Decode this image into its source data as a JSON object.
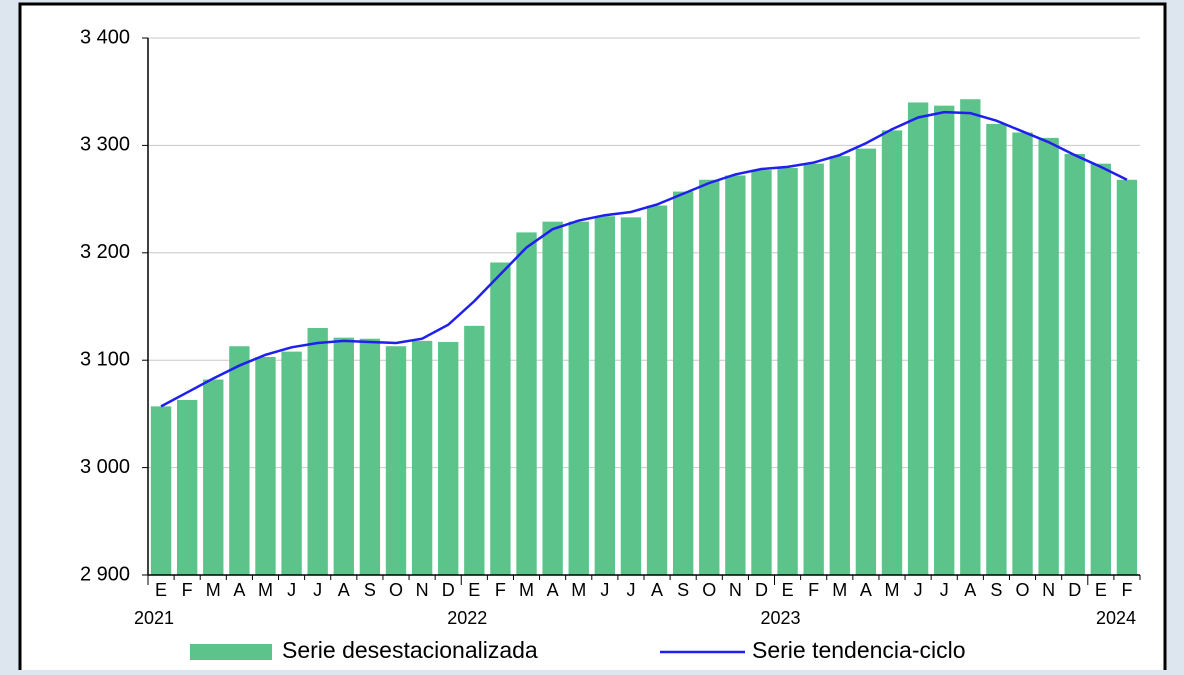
{
  "chart_data": {
    "type": "bar_line",
    "categories": [
      "E",
      "F",
      "M",
      "A",
      "M",
      "J",
      "J",
      "A",
      "S",
      "O",
      "N",
      "D",
      "E",
      "F",
      "M",
      "A",
      "M",
      "J",
      "J",
      "A",
      "S",
      "O",
      "N",
      "D",
      "E",
      "F",
      "M",
      "A",
      "M",
      "J",
      "J",
      "A",
      "S",
      "O",
      "N",
      "D",
      "E",
      "F"
    ],
    "years": [
      "2021",
      "2022",
      "2023",
      "2024"
    ],
    "series": [
      {
        "name": "Serie desestacionalizada",
        "color": "#5cc48a",
        "kind": "bar",
        "values": [
          3057,
          3063,
          3082,
          3113,
          3103,
          3108,
          3130,
          3121,
          3120,
          3113,
          3118,
          3117,
          3132,
          3191,
          3219,
          3229,
          3229,
          3234,
          3233,
          3244,
          3257,
          3268,
          3272,
          3277,
          3279,
          3283,
          3290,
          3297,
          3314,
          3340,
          3337,
          3343,
          3320,
          3312,
          3307,
          3292,
          3283,
          3268
        ]
      },
      {
        "name": "Serie tendencia-ciclo",
        "color": "#1f1ff0",
        "kind": "line",
        "values": [
          3057,
          3070,
          3083,
          3095,
          3105,
          3112,
          3116,
          3118,
          3117,
          3116,
          3120,
          3133,
          3155,
          3180,
          3205,
          3222,
          3230,
          3235,
          3238,
          3245,
          3255,
          3265,
          3273,
          3278,
          3280,
          3284,
          3291,
          3302,
          3315,
          3326,
          3331,
          3330,
          3323,
          3313,
          3303,
          3291,
          3280,
          3268
        ]
      }
    ],
    "ylim": [
      2900,
      3400
    ],
    "yticks": [
      {
        "value": 2900,
        "label": "2 900"
      },
      {
        "value": 3000,
        "label": "3 000"
      },
      {
        "value": 3100,
        "label": "3 100"
      },
      {
        "value": 3200,
        "label": "3 200"
      },
      {
        "value": 3300,
        "label": "3 300"
      },
      {
        "value": 3400,
        "label": "3 400"
      }
    ],
    "grid": true
  }
}
